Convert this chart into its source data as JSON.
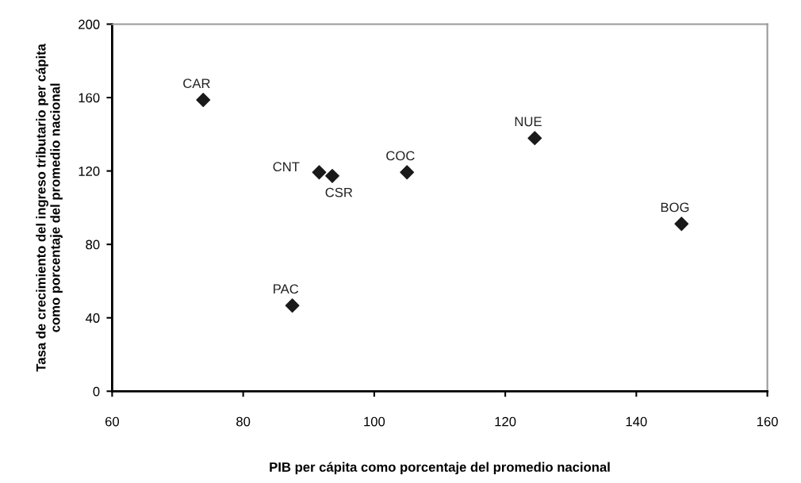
{
  "chart_data": {
    "type": "scatter",
    "xlabel": "PIB per cápita como porcentaje del promedio nacional",
    "ylabel": "Tasa de crecimiento del ingreso tributario per cápita\ncomo porcentaje del promedio nacional",
    "series": [
      {
        "color": "#1a1a1a",
        "x": [
          73.9,
          91.6,
          93.6,
          87.5,
          105.0,
          124.5,
          146.9
        ],
        "values": [
          158.7,
          119.3,
          117.3,
          46.7,
          119.3,
          137.9,
          91.2
        ]
      }
    ],
    "annotations": [
      {
        "text": "CAR",
        "x": 73.9,
        "y": 158.7
      },
      {
        "text": "CNT",
        "x": 91.6,
        "y": 119.3
      },
      {
        "text": "CSR",
        "x": 93.6,
        "y": 117.3
      },
      {
        "text": "PAC",
        "x": 87.5,
        "y": 46.7
      },
      {
        "text": "COC",
        "x": 105.0,
        "y": 119.3
      },
      {
        "text": "NUE",
        "x": 124.5,
        "y": 137.9
      },
      {
        "text": "BOG",
        "x": 146.9,
        "y": 91.2
      }
    ],
    "xlim": [
      60,
      160
    ],
    "xticks": [
      60,
      80,
      100,
      120,
      140,
      160
    ],
    "ylim": [
      0,
      200
    ],
    "yticks": [
      0,
      40,
      80,
      120,
      160,
      200
    ],
    "marker": "diamond",
    "grid": false
  }
}
